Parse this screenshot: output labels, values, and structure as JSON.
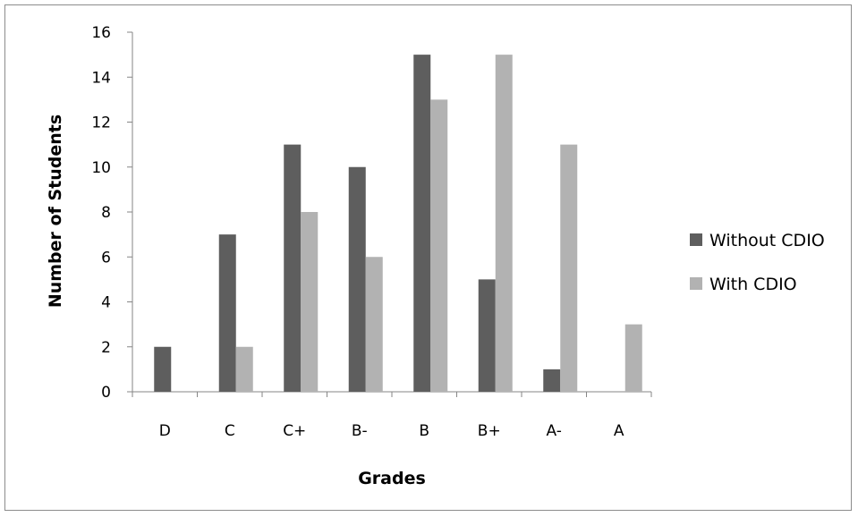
{
  "chart_data": {
    "type": "bar",
    "xlabel": "Grades",
    "ylabel": "Number of Students",
    "categories": [
      "D",
      "C",
      "C+",
      "B-",
      "B",
      "B+",
      "A-",
      "A"
    ],
    "ylim": [
      0,
      16
    ],
    "yticks": [
      0,
      2,
      4,
      6,
      8,
      10,
      12,
      14,
      16
    ],
    "ytick_labels": [
      "0",
      "2",
      "4",
      "6",
      "8",
      "10",
      "12",
      "14",
      "16"
    ],
    "grid": false,
    "legend_position": "right",
    "series": [
      {
        "name": "Without CDIO",
        "color": "#5e5e5e",
        "values": [
          2,
          7,
          11,
          10,
          15,
          5,
          1,
          0
        ]
      },
      {
        "name": "With CDIO",
        "color": "#b2b2b2",
        "values": [
          0,
          2,
          8,
          6,
          13,
          15,
          11,
          3
        ]
      }
    ]
  }
}
